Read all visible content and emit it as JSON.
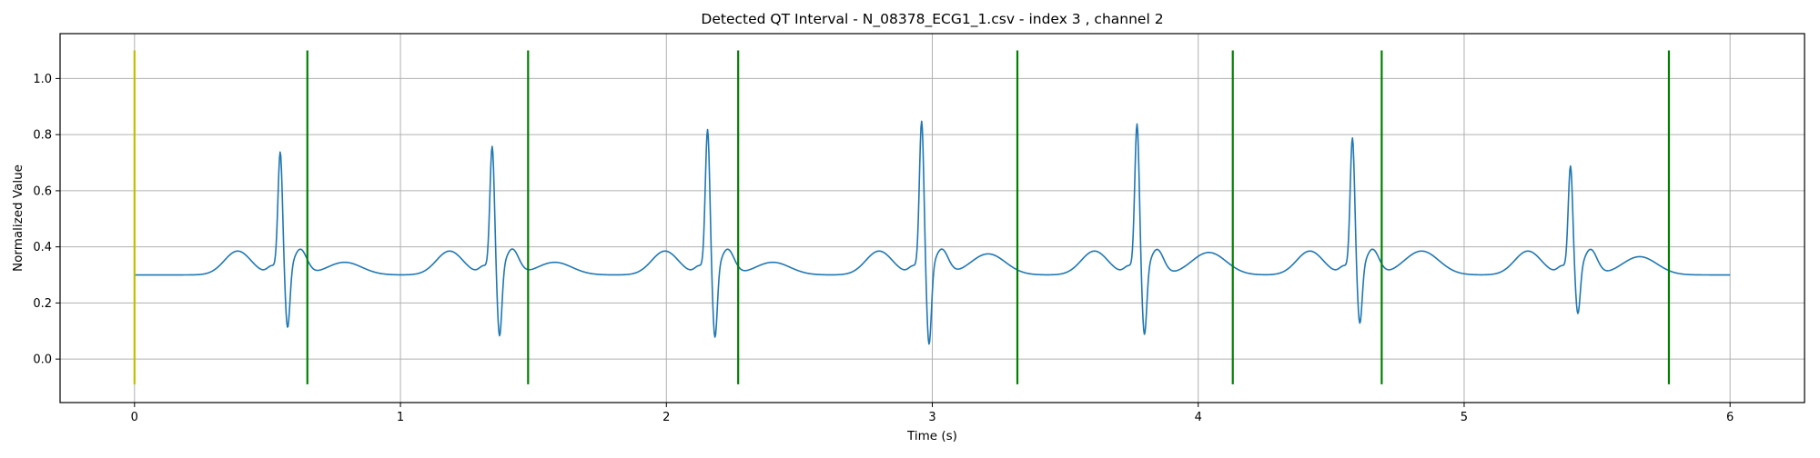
{
  "chart_data": {
    "type": "line",
    "title": "Detected QT Interval - N_08378_ECG1_1.csv - index 3 , channel 2",
    "xlabel": "Time (s)",
    "ylabel": "Normalized Value",
    "xlim": [
      -0.28,
      6.28
    ],
    "ylim": [
      -0.155,
      1.16
    ],
    "xticks": [
      0,
      1,
      2,
      3,
      4,
      5,
      6
    ],
    "yticks": [
      0.0,
      0.2,
      0.4,
      0.6,
      0.8,
      1.0
    ],
    "ytick_labels": [
      "0.0",
      "0.2",
      "0.4",
      "0.6",
      "0.8",
      "1.0"
    ],
    "grid": true,
    "signal_color": "#1f77b4",
    "beats": [
      {
        "r_time": 0.548,
        "r_peak": 0.82,
        "s_min": 0.135,
        "t_peak": 0.375,
        "t_time": 0.79
      },
      {
        "r_time": 1.345,
        "r_peak": 0.84,
        "s_min": 0.105,
        "t_peak": 0.375,
        "t_time": 1.58
      },
      {
        "r_time": 2.155,
        "r_peak": 0.9,
        "s_min": 0.1,
        "t_peak": 0.375,
        "t_time": 2.4
      },
      {
        "r_time": 2.96,
        "r_peak": 0.93,
        "s_min": 0.075,
        "t_peak": 0.405,
        "t_time": 3.21
      },
      {
        "r_time": 3.77,
        "r_peak": 0.92,
        "s_min": 0.11,
        "t_peak": 0.41,
        "t_time": 4.04
      },
      {
        "r_time": 4.58,
        "r_peak": 0.87,
        "s_min": 0.15,
        "t_peak": 0.415,
        "t_time": 4.84
      },
      {
        "r_time": 5.4,
        "r_peak": 0.77,
        "s_min": 0.185,
        "t_peak": 0.395,
        "t_time": 5.66
      }
    ],
    "baseline": 0.3,
    "signal_end_time": 6.0,
    "markers": [
      {
        "x": 0.0,
        "color": "#bfbf00",
        "y_from": -0.09,
        "y_to": 1.1
      },
      {
        "x": 0.65,
        "color": "#008000",
        "y_from": -0.09,
        "y_to": 1.1
      },
      {
        "x": 1.48,
        "color": "#008000",
        "y_from": -0.09,
        "y_to": 1.1
      },
      {
        "x": 2.27,
        "color": "#008000",
        "y_from": -0.09,
        "y_to": 1.1
      },
      {
        "x": 3.32,
        "color": "#008000",
        "y_from": -0.09,
        "y_to": 1.1
      },
      {
        "x": 4.13,
        "color": "#008000",
        "y_from": -0.09,
        "y_to": 1.1
      },
      {
        "x": 4.69,
        "color": "#008000",
        "y_from": -0.09,
        "y_to": 1.1
      },
      {
        "x": 5.77,
        "color": "#008000",
        "y_from": -0.09,
        "y_to": 1.1
      }
    ]
  }
}
